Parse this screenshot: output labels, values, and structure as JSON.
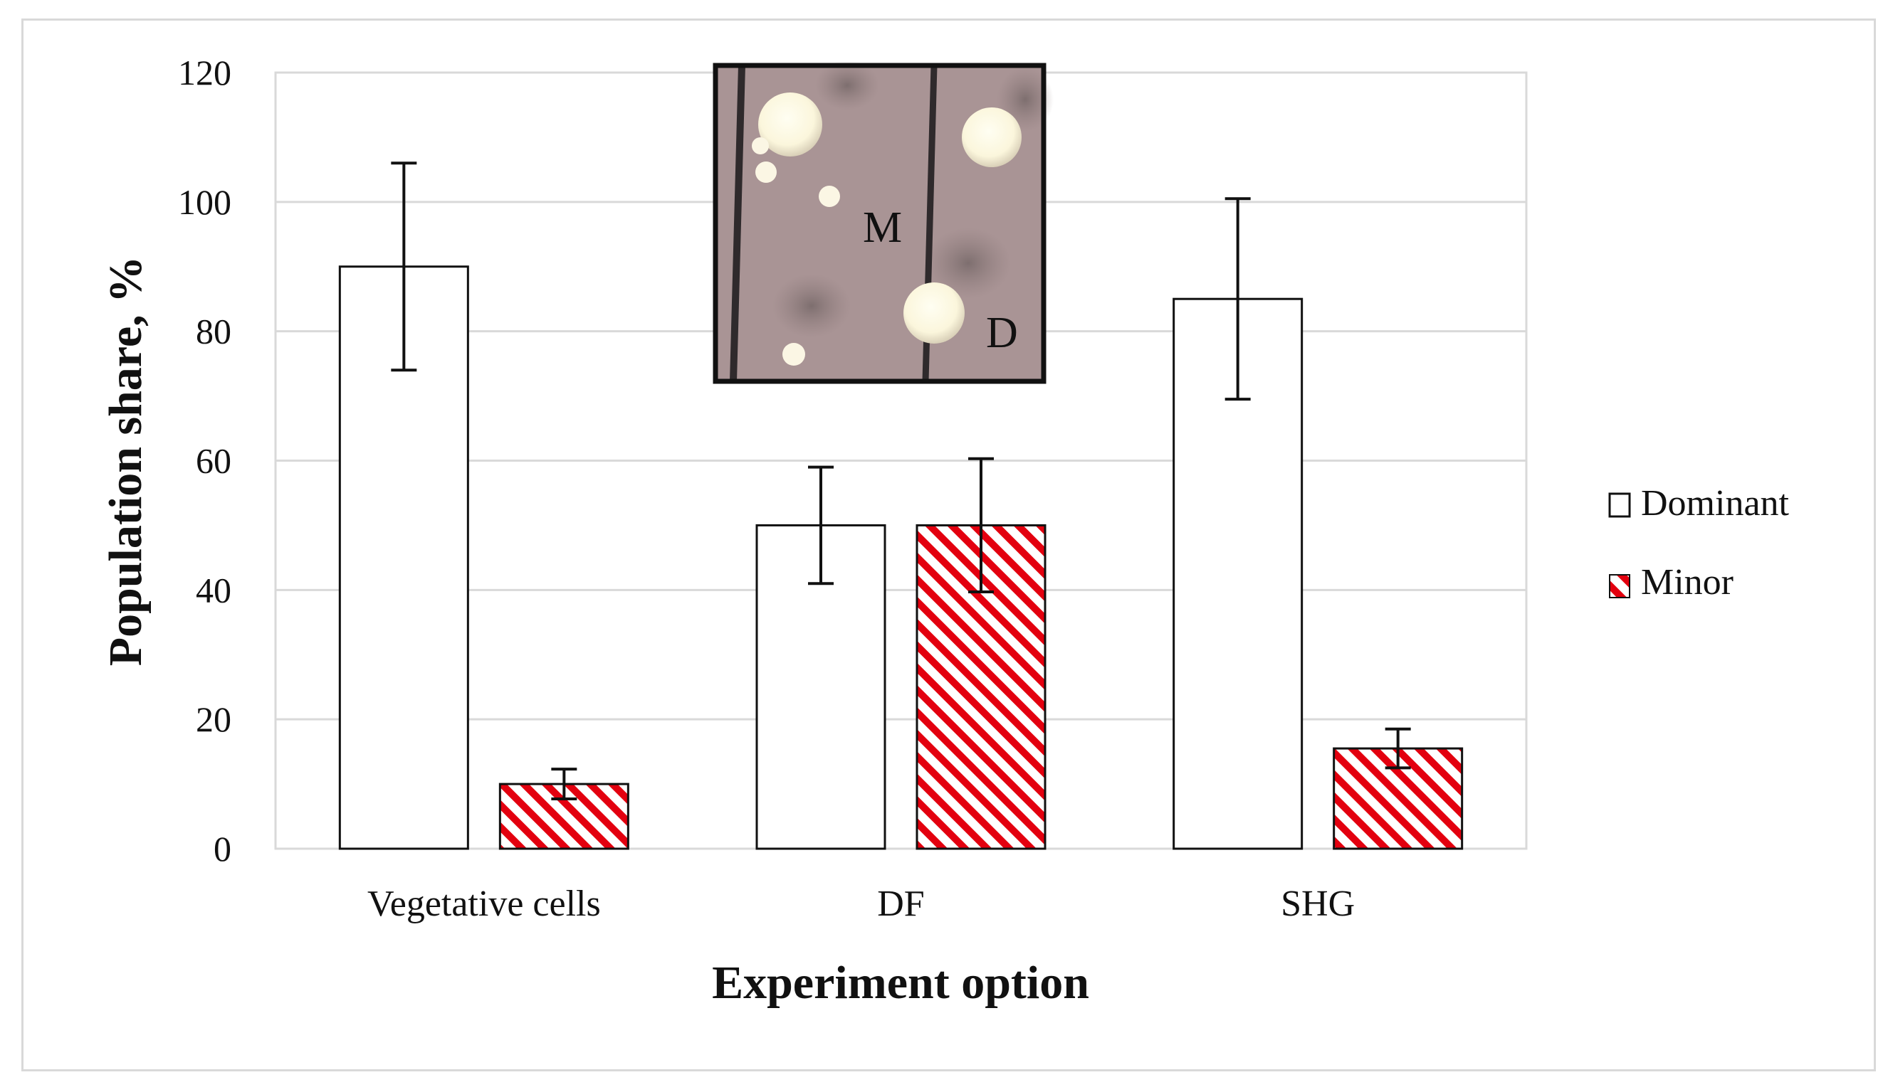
{
  "chart_data": {
    "type": "bar",
    "xlabel": "Experiment option",
    "ylabel": "Population share, %",
    "ylim": [
      0,
      120
    ],
    "yticks": [
      0,
      20,
      40,
      60,
      80,
      100,
      120
    ],
    "grid": true,
    "legend_position": "right",
    "categories": [
      "Vegetative cells",
      "DF",
      "SHG"
    ],
    "series": [
      {
        "name": "Dominant",
        "values": [
          90,
          50,
          85
        ],
        "error": [
          16,
          9,
          15.5
        ],
        "color": "#ffffff",
        "pattern": "solid"
      },
      {
        "name": "Minor",
        "values": [
          10,
          50,
          15.5
        ],
        "error": [
          2.3,
          10.3,
          3
        ],
        "color": "#e3000f",
        "pattern": "diagonal-hatch"
      }
    ],
    "inset": {
      "description_labels": [
        "M",
        "D"
      ]
    }
  }
}
